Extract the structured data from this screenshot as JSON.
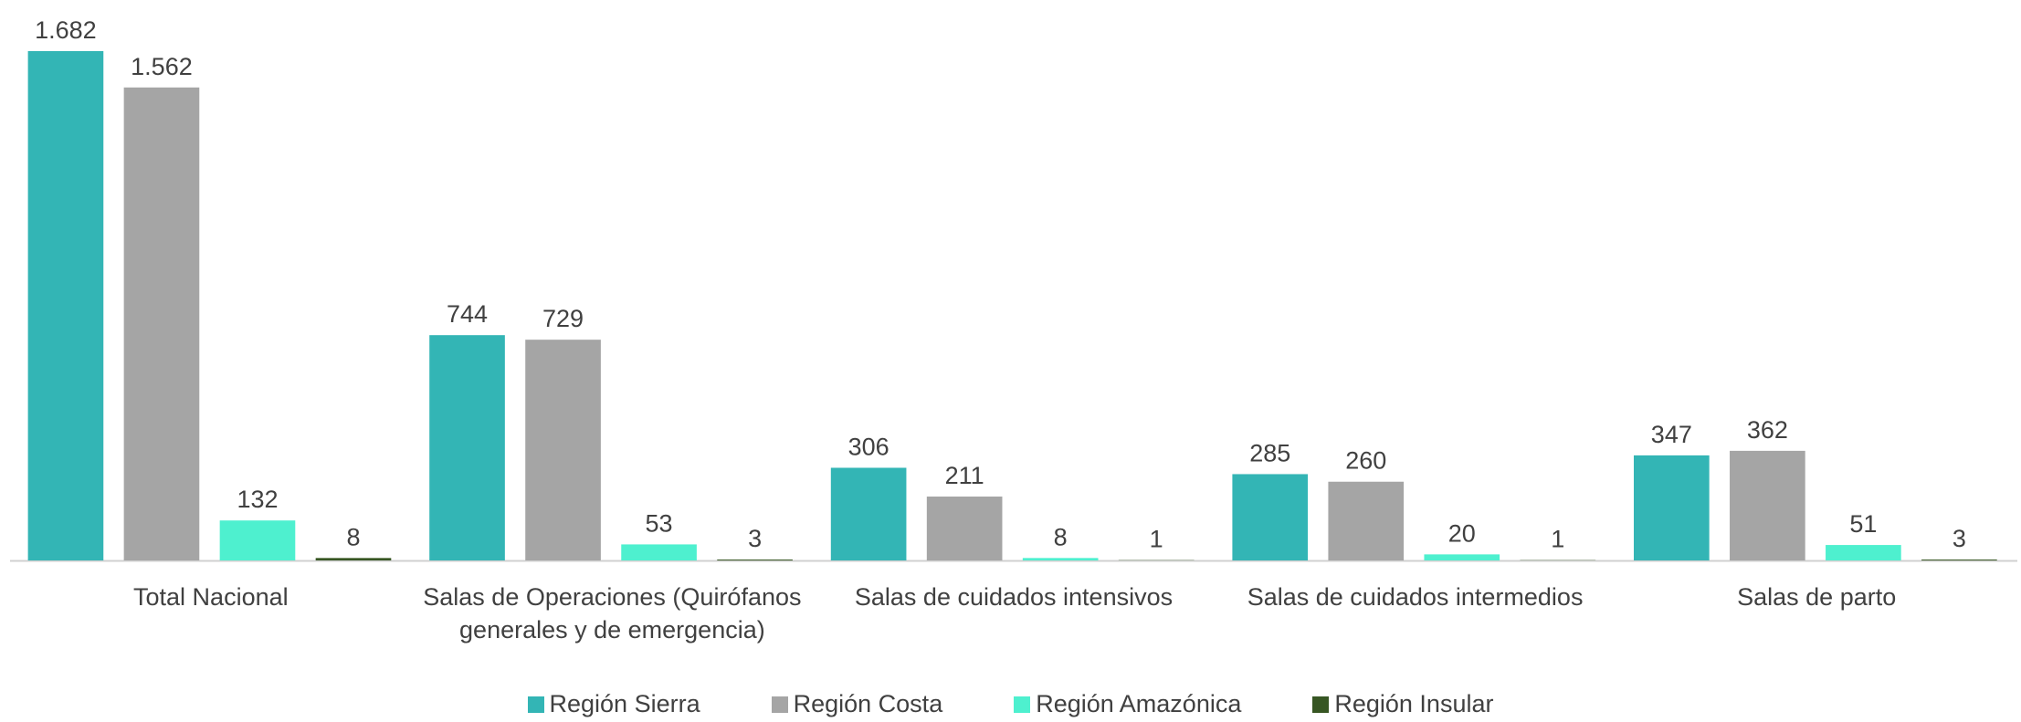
{
  "chart_data": {
    "type": "bar",
    "categories": [
      "Total Nacional",
      "Salas de Operaciones (Quirófanos generales y de emergencia)",
      "Salas de cuidados intensivos",
      "Salas de cuidados intermedios",
      "Salas de parto"
    ],
    "series": [
      {
        "name": "Región Sierra",
        "color": "#33b5b5",
        "values": [
          1682,
          744,
          306,
          285,
          347
        ],
        "value_labels": [
          "1.682",
          "744",
          "306",
          "285",
          "347"
        ]
      },
      {
        "name": "Región Costa",
        "color": "#a5a5a5",
        "values": [
          1562,
          729,
          211,
          260,
          362
        ],
        "value_labels": [
          "1.562",
          "729",
          "211",
          "260",
          "362"
        ]
      },
      {
        "name": "Región Amazónica",
        "color": "#4ef0cf",
        "values": [
          132,
          53,
          8,
          20,
          51
        ]
      },
      {
        "name": "Región Insular",
        "color": "#375623",
        "values": [
          8,
          3,
          1,
          1,
          3
        ]
      }
    ],
    "legend": "bottom"
  }
}
